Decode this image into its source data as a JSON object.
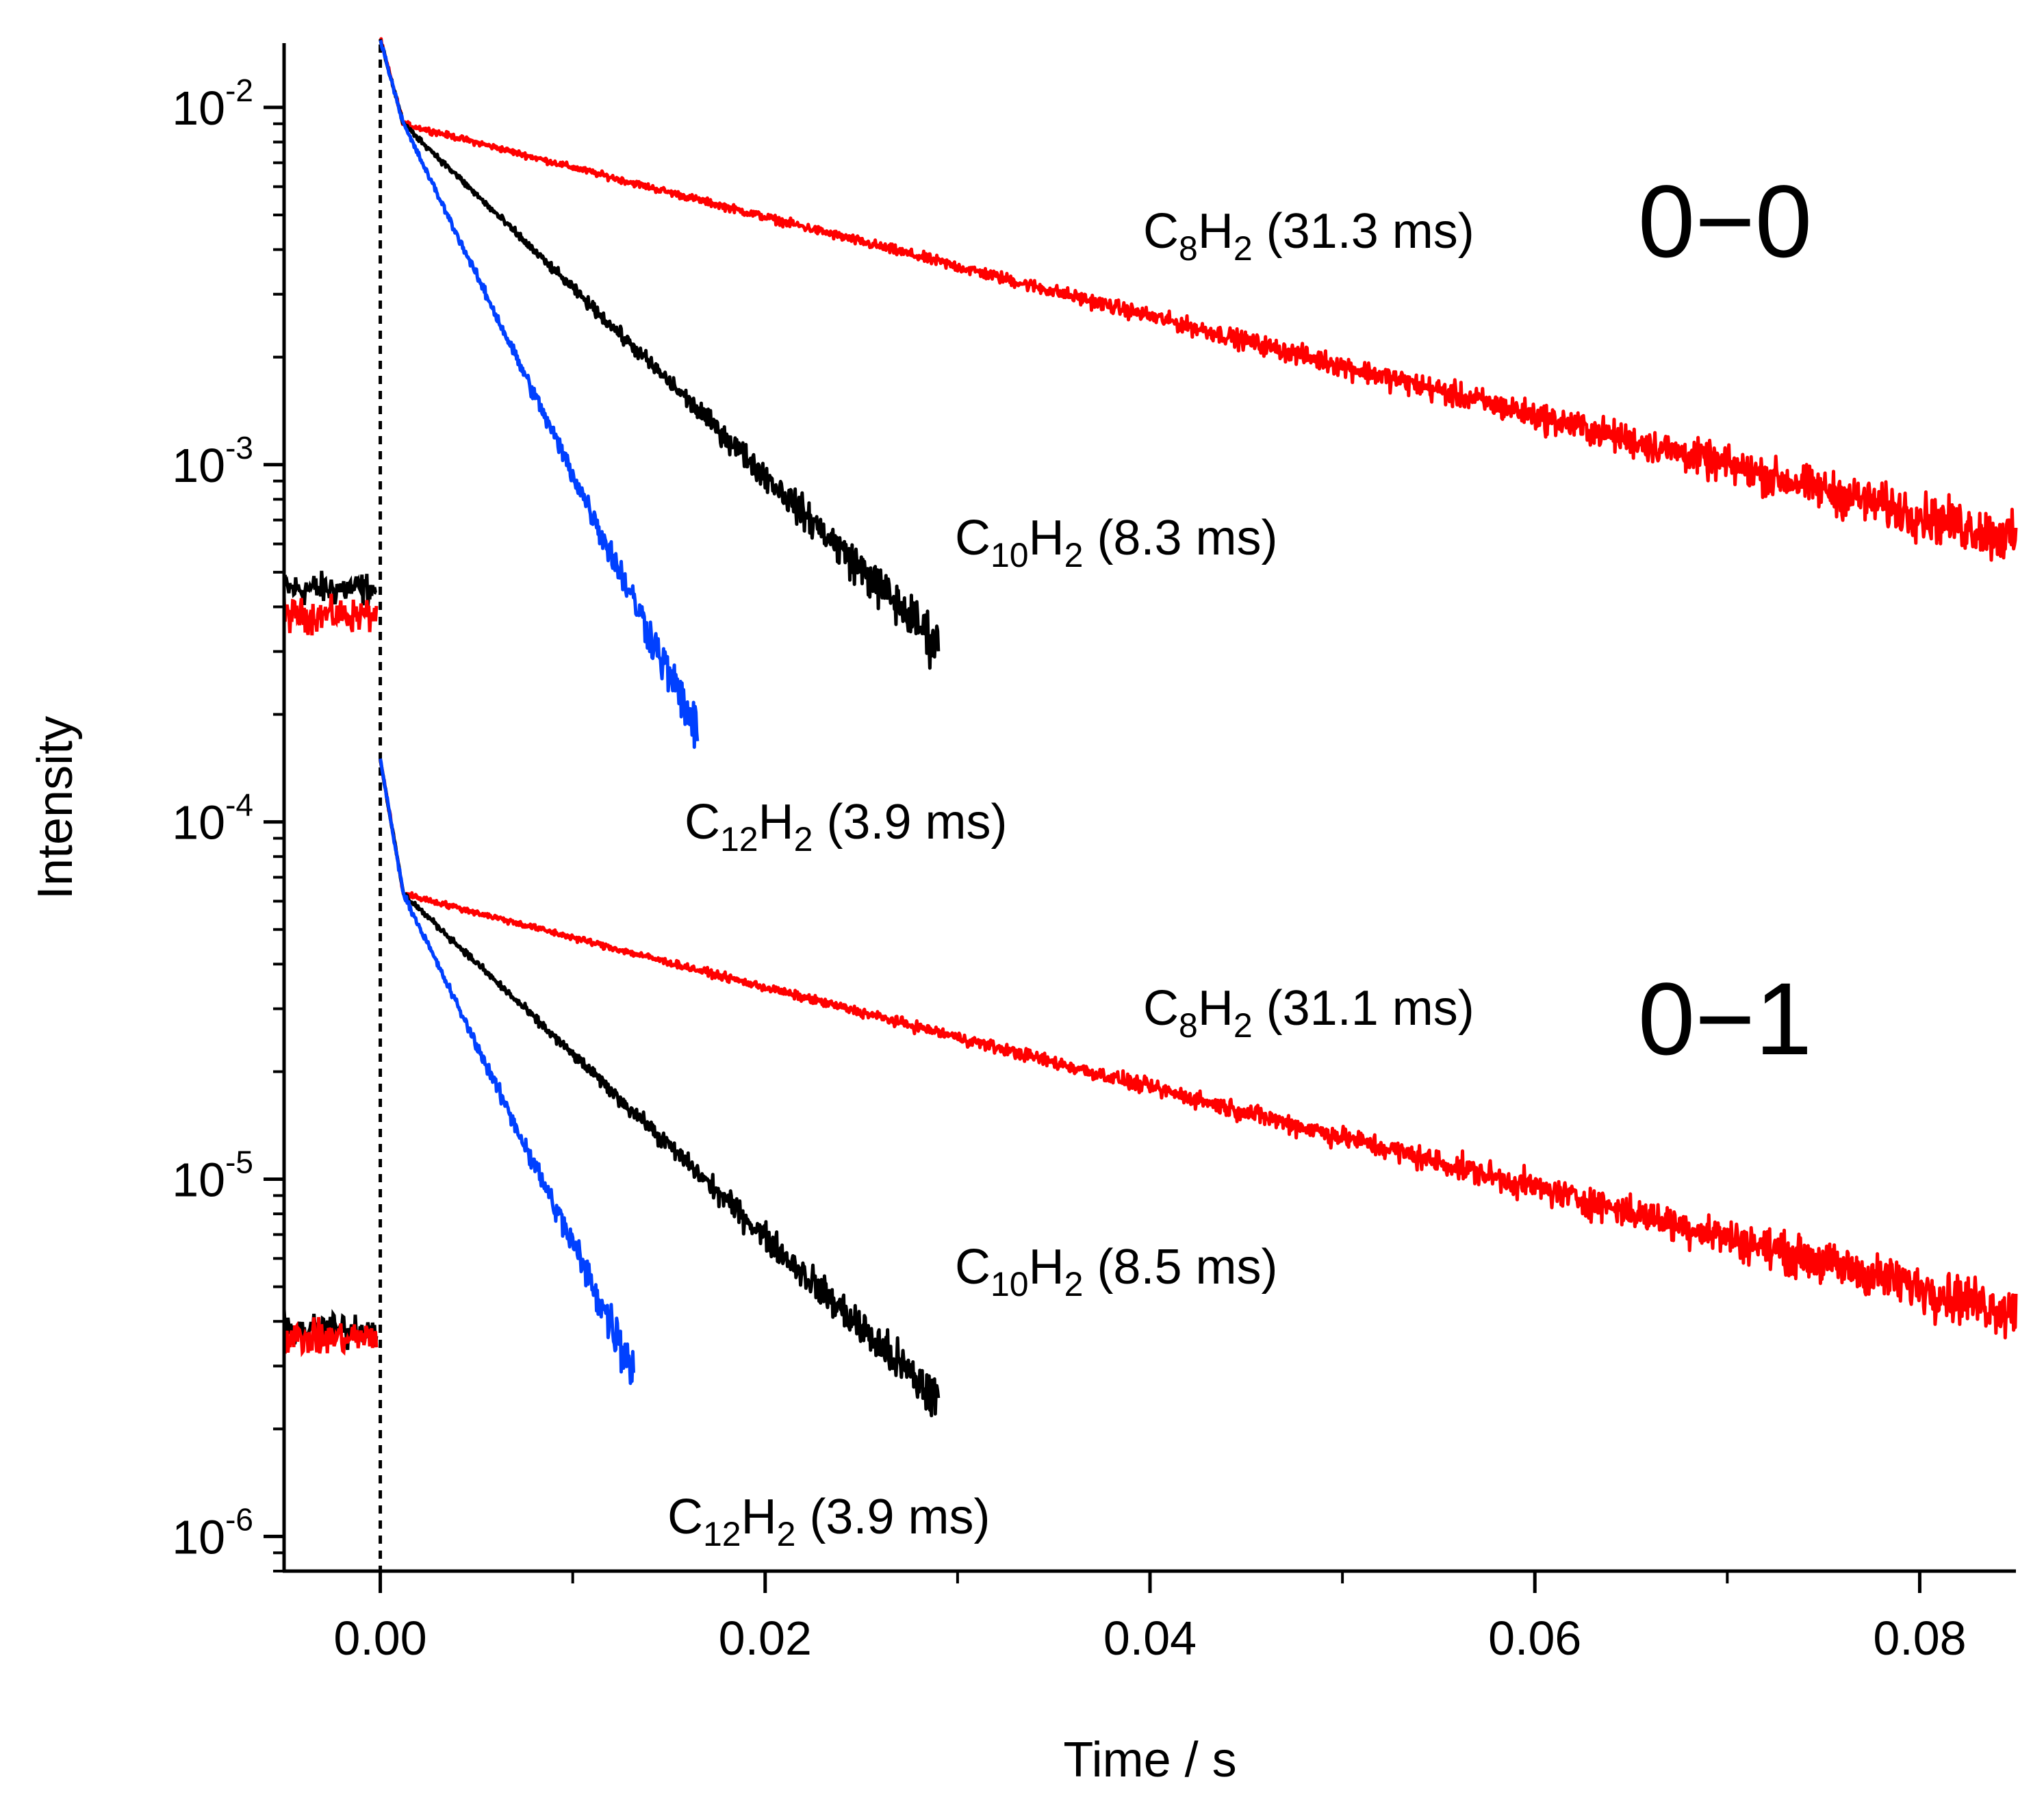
{
  "chart_data": {
    "type": "line",
    "title": "",
    "xlabel": "Time / s",
    "ylabel": "Intensity",
    "xlim": [
      -0.005,
      0.085
    ],
    "ylim": [
      8e-07,
      0.015
    ],
    "yscale": "log",
    "grid": false,
    "x_ticks": [
      {
        "value": 0.0,
        "label": "0.00"
      },
      {
        "value": 0.02,
        "label": "0.02"
      },
      {
        "value": 0.04,
        "label": "0.04"
      },
      {
        "value": 0.06,
        "label": "0.06"
      },
      {
        "value": 0.08,
        "label": "0.08"
      }
    ],
    "y_ticks": [
      {
        "value": 1e-06,
        "base": "10",
        "exp": "-6"
      },
      {
        "value": 1e-05,
        "base": "10",
        "exp": "-5"
      },
      {
        "value": 0.0001,
        "base": "10",
        "exp": "-4"
      },
      {
        "value": 0.001,
        "base": "10",
        "exp": "-3"
      },
      {
        "value": 0.01,
        "base": "10",
        "exp": "-2"
      }
    ],
    "reference_line": {
      "x": 0.0,
      "style": "dashed",
      "color": "#000000"
    },
    "colors": {
      "C8H2": "#ff0000",
      "C10H2": "#000000",
      "C12H2": "#0040ff"
    },
    "panels": [
      {
        "label": "0−0",
        "baseline": {
          "C8H2": 0.00038,
          "C10H2": 0.00045
        },
        "series": [
          {
            "name": "C8H2",
            "color": "#ff0000",
            "lifetime_ms": 31.3,
            "initial": 0.0155,
            "knee": 0.009,
            "t_knee": 0.0012,
            "t_end": 0.085
          },
          {
            "name": "C10H2",
            "color": "#000000",
            "lifetime_ms": 8.3,
            "initial": 0.0155,
            "knee": 0.009,
            "t_knee": 0.0012,
            "t_end": 0.029
          },
          {
            "name": "C12H2",
            "color": "#0040ff",
            "lifetime_ms": 3.9,
            "initial": 0.0155,
            "knee": 0.009,
            "t_knee": 0.0012,
            "t_end": 0.0165
          }
        ],
        "annotations": [
          {
            "species": "C8H2",
            "pre": "C",
            "sub1": "8",
            "mid": "H",
            "sub2": "2",
            "tail": " (31.3 ms)"
          },
          {
            "species": "C10H2",
            "pre": "C",
            "sub1": "10",
            "mid": "H",
            "sub2": "2",
            "tail": " (8.3 ms)"
          },
          {
            "species": "C12H2",
            "pre": "C",
            "sub1": "12",
            "mid": "H",
            "sub2": "2",
            "tail": " (3.9 ms)"
          }
        ]
      },
      {
        "label": "0−1",
        "baseline": {
          "C8H2": 3.6e-06,
          "C10H2": 3.8e-06
        },
        "series": [
          {
            "name": "C8H2",
            "color": "#ff0000",
            "lifetime_ms": 31.1,
            "initial": 0.00015,
            "knee": 6.3e-05,
            "t_knee": 0.0012,
            "t_end": 0.085
          },
          {
            "name": "C10H2",
            "color": "#000000",
            "lifetime_ms": 8.5,
            "initial": 0.00015,
            "knee": 6.3e-05,
            "t_knee": 0.0012,
            "t_end": 0.029
          },
          {
            "name": "C12H2",
            "color": "#0040ff",
            "lifetime_ms": 3.9,
            "initial": 0.00015,
            "knee": 6.3e-05,
            "t_knee": 0.0012,
            "t_end": 0.0132
          }
        ],
        "annotations": [
          {
            "species": "C8H2",
            "pre": "C",
            "sub1": "8",
            "mid": "H",
            "sub2": "2",
            "tail": " (31.1 ms)"
          },
          {
            "species": "C10H2",
            "pre": "C",
            "sub1": "10",
            "mid": "H",
            "sub2": "2",
            "tail": " (8.5 ms)"
          },
          {
            "species": "C12H2",
            "pre": "C",
            "sub1": "12",
            "mid": "H",
            "sub2": "2",
            "tail": " (3.9 ms)"
          }
        ]
      }
    ]
  }
}
